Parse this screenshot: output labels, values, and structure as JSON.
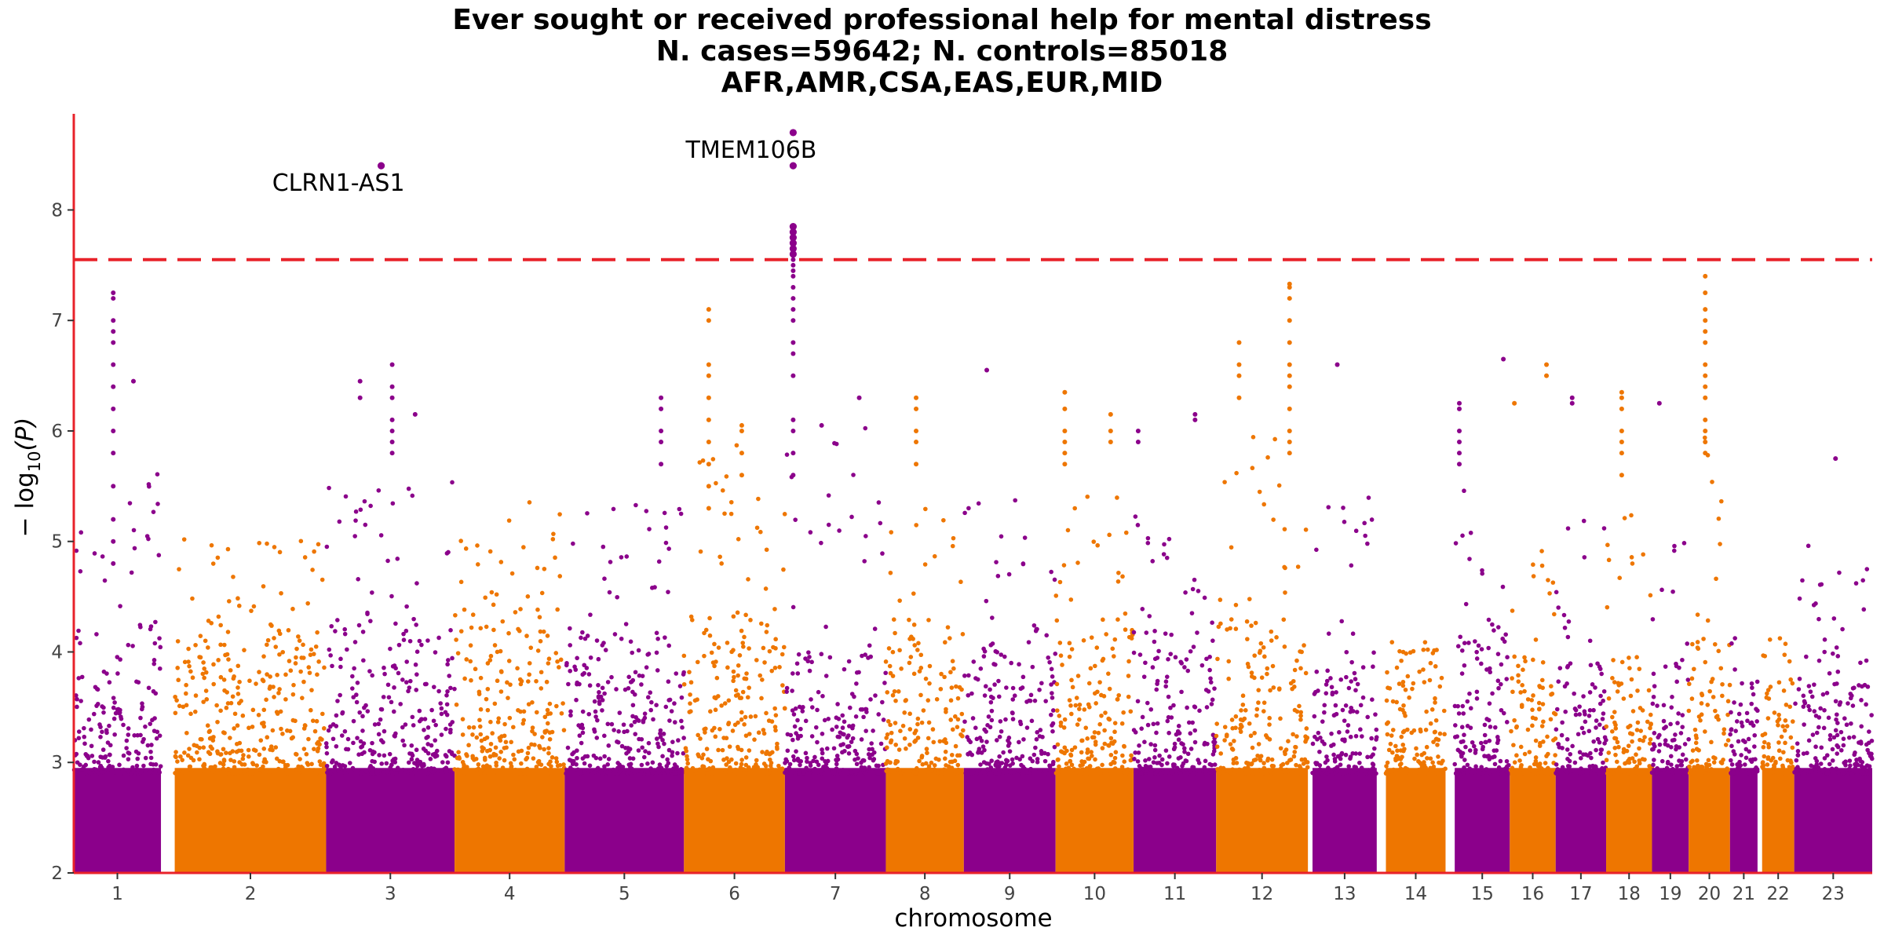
{
  "chart_data": {
    "type": "scatter",
    "title_lines": [
      "Ever sought or received professional help for mental distress",
      "N. cases=59642; N. controls=85018",
      "AFR,AMR,CSA,EAS,EUR,MID"
    ],
    "xlabel": "chromosome",
    "ylabel_base": "− log",
    "ylabel_sub": "10",
    "ylabel_rest": "(P)",
    "ylim": [
      2,
      8.87
    ],
    "yticks": [
      2,
      3,
      4,
      5,
      6,
      7,
      8
    ],
    "significance_line": 7.55,
    "colors": {
      "odd": "#8B008B",
      "even": "#EE7600",
      "threshold": "#E8222A",
      "axis": "#E8222A"
    },
    "chromosomes": [
      {
        "label": "1",
        "start": 0.5,
        "end": 1.45,
        "max": 7.25,
        "bg": 4.3
      },
      {
        "label": "2",
        "start": 1.6,
        "end": 3.25,
        "max": 5.7,
        "bg": 4.2
      },
      {
        "label": "3",
        "start": 3.25,
        "end": 4.65,
        "max": 6.6,
        "bg": 4.3
      },
      {
        "label": "4",
        "start": 4.65,
        "end": 5.85,
        "max": 6.15,
        "bg": 4.4
      },
      {
        "label": "5",
        "start": 5.85,
        "end": 7.15,
        "max": 6.3,
        "bg": 4.2
      },
      {
        "label": "6",
        "start": 7.15,
        "end": 8.25,
        "max": 7.1,
        "bg": 4.4
      },
      {
        "label": "7",
        "start": 8.25,
        "end": 9.35,
        "max": 7.85,
        "bg": 4.0
      },
      {
        "label": "8",
        "start": 9.35,
        "end": 10.2,
        "max": 6.3,
        "bg": 4.2
      },
      {
        "label": "9",
        "start": 10.2,
        "end": 11.2,
        "max": 6.5,
        "bg": 4.1
      },
      {
        "label": "10",
        "start": 11.2,
        "end": 12.05,
        "max": 6.35,
        "bg": 4.3
      },
      {
        "label": "11",
        "start": 12.05,
        "end": 12.95,
        "max": 6.15,
        "bg": 4.2
      },
      {
        "label": "12",
        "start": 12.95,
        "end": 13.95,
        "max": 7.33,
        "bg": 4.3
      },
      {
        "label": "13",
        "start": 14.0,
        "end": 14.7,
        "max": 6.6,
        "bg": 4.0
      },
      {
        "label": "14",
        "start": 14.8,
        "end": 15.45,
        "max": 4.5,
        "bg": 3.9
      },
      {
        "label": "15",
        "start": 15.55,
        "end": 16.15,
        "max": 6.65,
        "bg": 4.2
      },
      {
        "label": "16",
        "start": 16.15,
        "end": 16.65,
        "max": 6.6,
        "bg": 4.0
      },
      {
        "label": "17",
        "start": 16.65,
        "end": 17.2,
        "max": 6.3,
        "bg": 3.9
      },
      {
        "label": "18",
        "start": 17.2,
        "end": 17.7,
        "max": 6.35,
        "bg": 4.0
      },
      {
        "label": "19",
        "start": 17.7,
        "end": 18.1,
        "max": 6.25,
        "bg": 3.9
      },
      {
        "label": "20",
        "start": 18.1,
        "end": 18.55,
        "max": 7.4,
        "bg": 4.2
      },
      {
        "label": "21",
        "start": 18.55,
        "end": 18.85,
        "max": 4.5,
        "bg": 3.7
      },
      {
        "label": "22",
        "start": 18.9,
        "end": 19.25,
        "max": 4.6,
        "bg": 3.8
      },
      {
        "label": "23",
        "start": 19.25,
        "end": 20.1,
        "max": 5.75,
        "bg": 4.0
      }
    ],
    "xlim": [
      0.5,
      20.1
    ],
    "peaks": [
      {
        "x": 0.93,
        "values": [
          7.25,
          7.2,
          7.0,
          6.9,
          6.8,
          6.6,
          6.4,
          6.2,
          6.0,
          5.8,
          5.5,
          5.2,
          5.0,
          4.8
        ]
      },
      {
        "x": 1.15,
        "values": [
          6.45
        ]
      },
      {
        "x": 3.97,
        "values": [
          6.6,
          6.4,
          6.3,
          6.1,
          6.0,
          5.9,
          5.8
        ]
      },
      {
        "x": 3.85,
        "values": [
          8.4
        ]
      },
      {
        "x": 3.62,
        "values": [
          6.45,
          6.3
        ]
      },
      {
        "x": 4.22,
        "values": [
          6.15
        ]
      },
      {
        "x": 6.9,
        "values": [
          6.3,
          6.2,
          6.0,
          5.9,
          5.7
        ]
      },
      {
        "x": 7.42,
        "values": [
          7.1,
          7.0,
          6.6,
          6.5,
          6.3,
          6.1,
          5.9,
          5.7,
          5.5,
          5.3
        ]
      },
      {
        "x": 7.78,
        "values": [
          6.05,
          6.0,
          5.8,
          5.6
        ]
      },
      {
        "x": 8.34,
        "values": [
          8.7,
          8.4,
          7.85,
          7.8,
          7.75,
          7.7,
          7.65,
          7.6,
          7.55,
          7.5,
          7.45,
          7.4,
          7.3,
          7.2,
          7.1,
          7.0,
          6.8,
          6.7,
          6.5,
          6.1,
          6.0,
          5.8,
          5.6
        ]
      },
      {
        "x": 8.65,
        "values": [
          6.05
        ]
      },
      {
        "x": 9.06,
        "values": [
          6.3
        ]
      },
      {
        "x": 9.68,
        "values": [
          6.3,
          6.2,
          6.0,
          5.9,
          5.7
        ]
      },
      {
        "x": 10.45,
        "values": [
          6.55
        ]
      },
      {
        "x": 11.3,
        "values": [
          6.35,
          6.2,
          6.0,
          5.9,
          5.8,
          5.7
        ]
      },
      {
        "x": 11.8,
        "values": [
          6.15,
          6.0,
          5.9
        ]
      },
      {
        "x": 12.1,
        "values": [
          6.0,
          5.9
        ]
      },
      {
        "x": 12.72,
        "values": [
          6.15,
          6.1
        ]
      },
      {
        "x": 13.2,
        "values": [
          6.8,
          6.6,
          6.5,
          6.3
        ]
      },
      {
        "x": 13.75,
        "values": [
          7.33,
          7.3,
          7.2,
          7.0,
          6.8,
          6.6,
          6.5,
          6.4,
          6.2,
          6.0,
          5.9,
          5.8
        ]
      },
      {
        "x": 14.27,
        "values": [
          6.6
        ]
      },
      {
        "x": 15.6,
        "values": [
          6.25,
          6.2,
          6.0,
          5.9,
          5.8,
          5.7
        ]
      },
      {
        "x": 16.08,
        "values": [
          6.65
        ]
      },
      {
        "x": 16.2,
        "values": [
          6.25
        ]
      },
      {
        "x": 16.55,
        "values": [
          6.6,
          6.5
        ]
      },
      {
        "x": 16.83,
        "values": [
          6.3,
          6.25
        ]
      },
      {
        "x": 17.37,
        "values": [
          6.35,
          6.3,
          6.2,
          6.0,
          5.9,
          5.8,
          5.6
        ]
      },
      {
        "x": 17.78,
        "values": [
          6.25
        ]
      },
      {
        "x": 18.28,
        "values": [
          7.4,
          7.25,
          7.1,
          7.0,
          6.9,
          6.8,
          6.6,
          6.5,
          6.4,
          6.3,
          6.1,
          6.0,
          5.9,
          5.8
        ]
      },
      {
        "x": 19.7,
        "values": [
          5.75
        ]
      }
    ],
    "annotations": [
      {
        "text": "CLRN1-AS1",
        "x": 3.85,
        "y": 8.4,
        "anchor": "end"
      },
      {
        "text": "TMEM106B",
        "x": 8.34,
        "y": 8.7,
        "anchor": "end"
      }
    ]
  }
}
